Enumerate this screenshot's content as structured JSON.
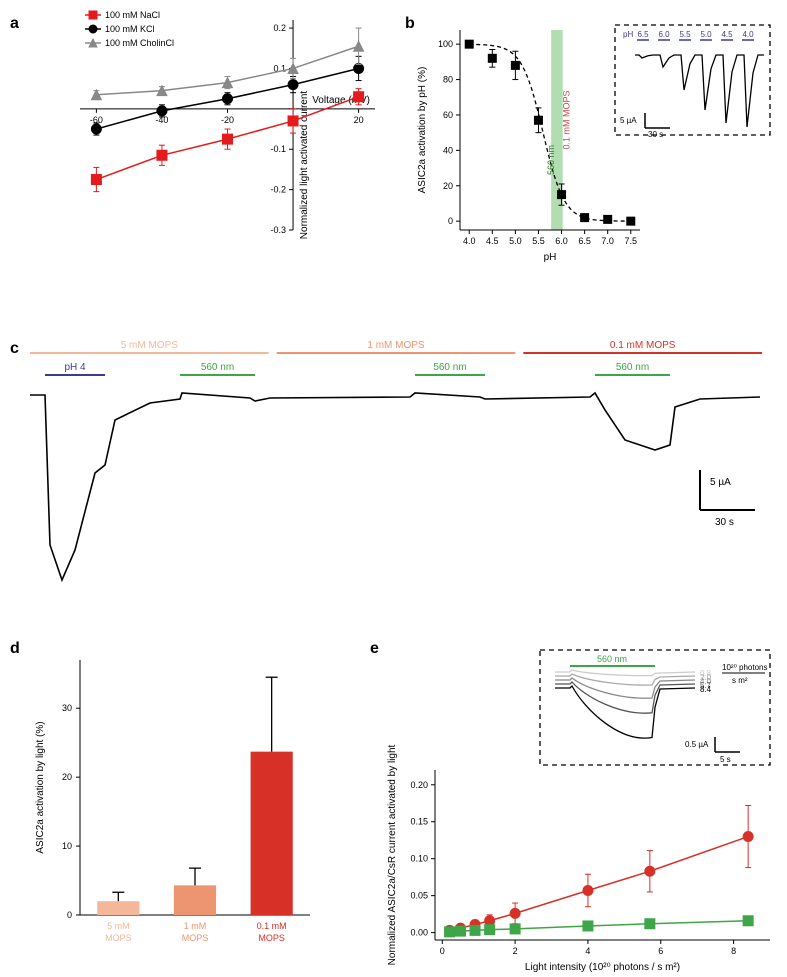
{
  "panel_a": {
    "label": "a",
    "type": "line-scatter",
    "xlabel": "Voltage (mV)",
    "ylabel": "Normalized light activated current",
    "xlim": [
      -65,
      25
    ],
    "ylim": [
      -0.3,
      0.22
    ],
    "xticks": [
      -60,
      -40,
      -20,
      0,
      20
    ],
    "yticks": [
      -0.3,
      -0.2,
      -0.1,
      0,
      0.1,
      0.2
    ],
    "legend": [
      "100 mM NaCl",
      "100 mM KCl",
      "100 mM CholinCl"
    ],
    "series": [
      {
        "name": "100 mM NaCl",
        "color": "#e41a1c",
        "marker": "square",
        "x": [
          -60,
          -40,
          -20,
          0,
          20
        ],
        "y": [
          -0.175,
          -0.115,
          -0.075,
          -0.03,
          0.03
        ],
        "err": [
          0.03,
          0.025,
          0.025,
          0.03,
          0.02
        ]
      },
      {
        "name": "100 mM KCl",
        "color": "#000000",
        "marker": "circle",
        "x": [
          -60,
          -40,
          -20,
          0,
          20
        ],
        "y": [
          -0.05,
          -0.005,
          0.025,
          0.06,
          0.1
        ],
        "err": [
          0.015,
          0.015,
          0.015,
          0.02,
          0.03
        ]
      },
      {
        "name": "100 mM CholinCl",
        "color": "#888888",
        "marker": "triangle",
        "x": [
          -60,
          -40,
          -20,
          0,
          20
        ],
        "y": [
          0.035,
          0.045,
          0.065,
          0.1,
          0.155
        ],
        "err": [
          0.01,
          0.01,
          0.015,
          0.025,
          0.045
        ]
      }
    ],
    "label_fontsize": 10,
    "tick_fontsize": 9,
    "legend_fontsize": 9,
    "line_width": 1.5,
    "marker_size": 5
  },
  "panel_b": {
    "label": "b",
    "type": "line-scatter",
    "xlabel": "pH",
    "ylabel": "ASIC2a activation by pH (%)",
    "xlim": [
      3.8,
      7.7
    ],
    "ylim": [
      -5,
      108
    ],
    "xticks": [
      4.0,
      4.5,
      5.0,
      5.5,
      6.0,
      6.5,
      7.0,
      7.5
    ],
    "yticks": [
      0,
      20,
      40,
      60,
      80,
      100
    ],
    "series": [
      {
        "color": "#000000",
        "marker": "square",
        "x": [
          4.0,
          4.5,
          5.0,
          5.5,
          6.0,
          6.5,
          7.0,
          7.5
        ],
        "y": [
          100,
          92,
          88,
          57,
          15,
          2,
          1,
          0
        ],
        "err": [
          0,
          5,
          8,
          7,
          6,
          2,
          1,
          0
        ]
      }
    ],
    "curve_dash": "4,3",
    "band": {
      "x": 5.9,
      "width": 0.25,
      "color": "#9ed49e",
      "label_top": "560 nm",
      "label_right": "0.1 mM MOPS",
      "label_right_color": "#c94a4a"
    },
    "inset": {
      "ph_labels": [
        "6.5",
        "6.0",
        "5.5",
        "5.0",
        "4.5",
        "4.0"
      ],
      "ph_label_color": "#3b3b8f",
      "scale_y": "5 µA",
      "scale_x": "30 s",
      "dash_color": "#000000"
    },
    "label_fontsize": 10,
    "tick_fontsize": 9
  },
  "panel_c": {
    "label": "c",
    "type": "trace",
    "mops_bars": [
      {
        "label": "5 mM MOPS",
        "color": "#f4b79a"
      },
      {
        "label": "1 mM MOPS",
        "color": "#ed9471"
      },
      {
        "label": "0.1 mM MOPS",
        "color": "#d73027"
      }
    ],
    "ph4_label": "pH 4",
    "ph4_color": "#3b3b8f",
    "light_label": "560 nm",
    "light_color": "#3fa549",
    "scale_y": "5 µA",
    "scale_x": "30 s",
    "trace_color": "#000000",
    "label_fontsize": 10
  },
  "panel_d": {
    "label": "d",
    "type": "bar",
    "ylabel": "ASIC2a activation by light (%)",
    "ylim": [
      0,
      37
    ],
    "yticks": [
      0,
      10,
      20,
      30
    ],
    "categories": [
      "5 mM MOPS",
      "1 mM MOPS",
      "0.1 mM MOPS"
    ],
    "values": [
      2.0,
      4.3,
      23.7
    ],
    "errors": [
      1.3,
      2.5,
      10.8
    ],
    "bar_colors": [
      "#f4b79a",
      "#ed9471",
      "#d73027"
    ],
    "bar_width": 0.55,
    "label_fontsize": 10,
    "tick_fontsize": 9
  },
  "panel_e": {
    "label": "e",
    "type": "line-scatter",
    "xlabel": "Light intensity (10²⁰ photons / s m²)",
    "ylabel": "Normalized ASIC2a/CsR current activated by light",
    "xlim": [
      -0.2,
      9
    ],
    "ylim": [
      -0.01,
      0.22
    ],
    "xticks": [
      0,
      2,
      4,
      6,
      8
    ],
    "yticks": [
      0,
      0.05,
      0.1,
      0.15,
      0.2
    ],
    "series": [
      {
        "color": "#d73027",
        "marker": "circle",
        "x": [
          0.2,
          0.5,
          0.9,
          1.3,
          2.0,
          4.0,
          5.7,
          8.4
        ],
        "y": [
          0.003,
          0.006,
          0.011,
          0.016,
          0.026,
          0.057,
          0.083,
          0.13
        ],
        "err": [
          0.003,
          0.004,
          0.006,
          0.008,
          0.014,
          0.022,
          0.028,
          0.042
        ]
      },
      {
        "color": "#3fa549",
        "marker": "square",
        "x": [
          0.2,
          0.5,
          0.9,
          1.3,
          2.0,
          4.0,
          5.7,
          8.4
        ],
        "y": [
          0.001,
          0.002,
          0.003,
          0.004,
          0.005,
          0.009,
          0.012,
          0.016
        ],
        "err": [
          0.001,
          0.001,
          0.002,
          0.002,
          0.002,
          0.003,
          0.003,
          0.004
        ]
      }
    ],
    "inset": {
      "light_label": "560 nm",
      "light_color": "#3fa549",
      "levels": [
        "0.8",
        "2.0",
        "4.0",
        "5.7",
        "8.4"
      ],
      "level_colors": [
        "#cccccc",
        "#aaaaaa",
        "#888888",
        "#555555",
        "#000000"
      ],
      "unit_top": "10²⁰ photons",
      "unit_bottom": "s m²",
      "scale_y": "0.5 µA",
      "scale_x": "5 s",
      "dash_color": "#000000"
    },
    "label_fontsize": 10,
    "tick_fontsize": 9,
    "line_width": 1.5,
    "marker_size": 5
  }
}
